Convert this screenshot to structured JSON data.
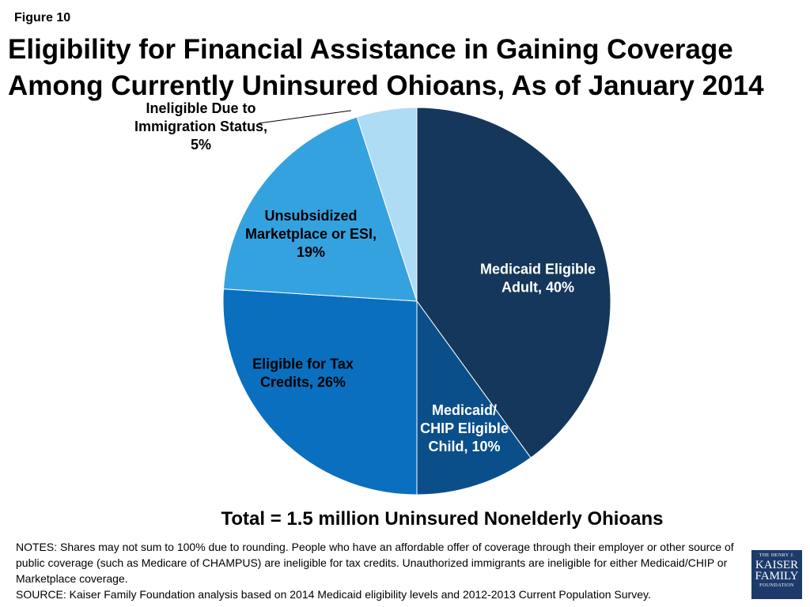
{
  "figure_label": "Figure 10",
  "title_lines": [
    "Eligibility for Financial Assistance in Gaining Coverage",
    "Among Currently Uninsured Ohioans, As of January 2014"
  ],
  "chart_data": {
    "type": "pie",
    "slices": [
      {
        "label_lines": [
          "Medicaid Eligible",
          "Adult, 40%"
        ],
        "value": 40,
        "color": "#15375b",
        "label_color": "#ffffff"
      },
      {
        "label_lines": [
          "Medicaid/",
          "CHIP Eligible",
          "Child, 10%"
        ],
        "value": 10,
        "color": "#0b4f8a",
        "label_color": "#ffffff"
      },
      {
        "label_lines": [
          "Eligible for Tax",
          "Credits, 26%"
        ],
        "value": 26,
        "color": "#0a6fbf",
        "label_color": "#000000"
      },
      {
        "label_lines": [
          "Unsubsidized",
          "Marketplace or ESI,",
          "19%"
        ],
        "value": 19,
        "color": "#35a2e0",
        "label_color": "#000000"
      },
      {
        "label_lines": [
          "Ineligible Due to",
          "Immigration Status,",
          "5%"
        ],
        "value": 5,
        "color": "#aedcf5",
        "label_color": "#000000"
      }
    ]
  },
  "total_text": "Total = 1.5 million Uninsured Nonelderly Ohioans",
  "notes": "NOTES: Shares may not sum to 100% due to rounding. People who have an affordable offer of coverage through their employer or other source of public coverage (such as Medicare of CHAMPUS) are ineligible for tax credits. Unauthorized immigrants are ineligible for either Medicaid/CHIP or Marketplace coverage.",
  "source": "SOURCE: Kaiser Family Foundation analysis based on 2014 Medicaid eligibility levels and 2012-2013 Current Population Survey.",
  "logo": {
    "line1": "THE HENRY J.",
    "line2": "KAISER",
    "line3": "FAMILY",
    "line4": "FOUNDATION"
  }
}
